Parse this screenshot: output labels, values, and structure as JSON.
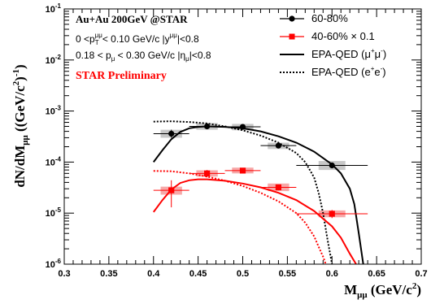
{
  "chart_data": {
    "type": "scatter",
    "xlabel_main": "M",
    "xlabel_sub": "μμ",
    "xlabel_unit_open": " (GeV/c",
    "xlabel_unit_sup": "2",
    "xlabel_unit_close": ")",
    "ylabel_main": "dN/dM",
    "ylabel_sub": "μμ",
    "ylabel_unit_open": " ((GeV/c",
    "ylabel_unit_sup": "2",
    "ylabel_unit_sup2": ")",
    "ylabel_unit_exp": "-1",
    "ylabel_unit_close": ")",
    "xlim": [
      0.3,
      0.7
    ],
    "ylim": [
      1e-06,
      0.1
    ],
    "yscale": "log",
    "x_ticks": [
      {
        "value": 0.3,
        "label": "0.3"
      },
      {
        "value": 0.35,
        "label": "0.35"
      },
      {
        "value": 0.4,
        "label": "0.4"
      },
      {
        "value": 0.45,
        "label": "0.45"
      },
      {
        "value": 0.5,
        "label": "0.5"
      },
      {
        "value": 0.55,
        "label": "0.55"
      },
      {
        "value": 0.6,
        "label": "0.6"
      },
      {
        "value": 0.65,
        "label": "0.65"
      },
      {
        "value": 0.7,
        "label": "0.7"
      }
    ],
    "y_ticks": [
      {
        "value": 1e-06,
        "base": "10",
        "exp": "-6"
      },
      {
        "value": 1e-05,
        "base": "10",
        "exp": "-5"
      },
      {
        "value": 0.0001,
        "base": "10",
        "exp": "-4"
      },
      {
        "value": 0.001,
        "base": "10",
        "exp": "-3"
      },
      {
        "value": 0.01,
        "base": "10",
        "exp": "-2"
      },
      {
        "value": 0.1,
        "base": "10",
        "exp": "-1"
      }
    ],
    "annotations": {
      "line1": "Au+Au 200GeV @STAR",
      "line2_a": "0 <p",
      "line2_sub": "T",
      "line2_sup": "μμ",
      "line2_b": "< 0.10 GeV/c  |y",
      "line2_sup2": "μμ",
      "line2_c": "|<0.8",
      "line3_a": "0.18 < p",
      "line3_sub": "μ",
      "line3_b": " < 0.30 GeV/c  |η",
      "line3_sub2": "μ",
      "line3_c": "|<0.8",
      "preliminary": "STAR Preliminary"
    },
    "legend": {
      "placement": "top-right",
      "entry1": "60-80%",
      "entry2": "40-60% × 0.1",
      "entry3_a": "EPA-QED (μ",
      "entry3_sup1": "+",
      "entry3_b": "μ",
      "entry3_sup2": "-",
      "entry3_c": ")",
      "entry4_a": "EPA-QED (e",
      "entry4_sup1": "+",
      "entry4_b": "e",
      "entry4_sup2": "-",
      "entry4_c": ")"
    },
    "series": [
      {
        "name": "60-80%",
        "color": "#000000",
        "marker": "circle",
        "points": [
          {
            "x": 0.42,
            "y": 0.00036,
            "xerr": 0.02,
            "ylo": 0.0003,
            "yhi": 0.00043,
            "sxerr": 0.012,
            "sylo": 0.0003,
            "syhi": 0.00043
          },
          {
            "x": 0.46,
            "y": 0.0005,
            "xerr": 0.02,
            "ylo": 0.00046,
            "yhi": 0.00054,
            "sxerr": 0.012,
            "sylo": 0.00043,
            "syhi": 0.00058
          },
          {
            "x": 0.5,
            "y": 0.00049,
            "xerr": 0.02,
            "ylo": 0.00045,
            "yhi": 0.00053,
            "sxerr": 0.012,
            "sylo": 0.00042,
            "syhi": 0.00056
          },
          {
            "x": 0.54,
            "y": 0.00021,
            "xerr": 0.02,
            "ylo": 0.00019,
            "yhi": 0.00023,
            "sxerr": 0.012,
            "sylo": 0.00018,
            "syhi": 0.00024
          },
          {
            "x": 0.6,
            "y": 8.6e-05,
            "xerr": 0.04,
            "ylo": 7.8e-05,
            "yhi": 9.5e-05,
            "sxerr": 0.015,
            "sylo": 7e-05,
            "syhi": 0.000105
          }
        ]
      },
      {
        "name": "40-60% × 0.1",
        "color": "#ff0000",
        "marker": "square",
        "points": [
          {
            "x": 0.42,
            "y": 2.8e-05,
            "xerr": 0.02,
            "ylo": 1.3e-05,
            "yhi": 4.4e-05,
            "sxerr": 0.012,
            "sylo": 2.3e-05,
            "syhi": 3.3e-05
          },
          {
            "x": 0.46,
            "y": 6e-05,
            "xerr": 0.02,
            "ylo": 5e-05,
            "yhi": 7e-05,
            "sxerr": 0.012,
            "sylo": 5.2e-05,
            "syhi": 6.9e-05
          },
          {
            "x": 0.5,
            "y": 6.8e-05,
            "xerr": 0.02,
            "ylo": 6e-05,
            "yhi": 7.6e-05,
            "sxerr": 0.012,
            "sylo": 6e-05,
            "syhi": 7.8e-05
          },
          {
            "x": 0.54,
            "y": 3.2e-05,
            "xerr": 0.02,
            "ylo": 2.8e-05,
            "yhi": 3.6e-05,
            "sxerr": 0.012,
            "sylo": 2.7e-05,
            "syhi": 3.8e-05
          },
          {
            "x": 0.6,
            "y": 9.7e-06,
            "xerr": 0.04,
            "ylo": 8e-06,
            "yhi": 1.15e-05,
            "sxerr": 0.015,
            "sylo": 8.3e-06,
            "syhi": 1.13e-05
          }
        ]
      }
    ],
    "curves": [
      {
        "name": "EPA-QED (μ+μ-) 60-80%",
        "color": "#000000",
        "dash": "solid",
        "points": [
          [
            0.4,
            0.0001
          ],
          [
            0.41,
            0.00017
          ],
          [
            0.42,
            0.00028
          ],
          [
            0.43,
            0.00039
          ],
          [
            0.44,
            0.00046
          ],
          [
            0.45,
            0.00049
          ],
          [
            0.46,
            0.0005
          ],
          [
            0.48,
            0.00049
          ],
          [
            0.5,
            0.00046
          ],
          [
            0.52,
            0.0004
          ],
          [
            0.54,
            0.00032
          ],
          [
            0.56,
            0.00024
          ],
          [
            0.58,
            0.00016
          ],
          [
            0.6,
            9e-05
          ],
          [
            0.61,
            6e-05
          ],
          [
            0.62,
            3e-05
          ],
          [
            0.625,
            1.5e-05
          ],
          [
            0.63,
            4e-06
          ],
          [
            0.635,
            1e-06
          ]
        ]
      },
      {
        "name": "EPA-QED (e+e-) 60-80%",
        "color": "#000000",
        "dash": "dotted",
        "points": [
          [
            0.4,
            0.00062
          ],
          [
            0.42,
            0.00063
          ],
          [
            0.44,
            0.00061
          ],
          [
            0.46,
            0.00057
          ],
          [
            0.48,
            0.0005
          ],
          [
            0.5,
            0.00042
          ],
          [
            0.52,
            0.00033
          ],
          [
            0.54,
            0.00024
          ],
          [
            0.56,
            0.00015
          ],
          [
            0.57,
            0.0001
          ],
          [
            0.58,
            5e-05
          ],
          [
            0.585,
            2.5e-05
          ],
          [
            0.59,
            1e-05
          ],
          [
            0.595,
            3e-06
          ],
          [
            0.6,
            1e-06
          ]
        ]
      },
      {
        "name": "EPA-QED (μ+μ-) 40-60%",
        "color": "#ff0000",
        "dash": "solid",
        "points": [
          [
            0.4,
            1.05e-05
          ],
          [
            0.41,
            1.8e-05
          ],
          [
            0.42,
            2.9e-05
          ],
          [
            0.43,
            3.9e-05
          ],
          [
            0.44,
            4.4e-05
          ],
          [
            0.45,
            4.6e-05
          ],
          [
            0.46,
            4.6e-05
          ],
          [
            0.48,
            4.3e-05
          ],
          [
            0.5,
            3.8e-05
          ],
          [
            0.52,
            3.2e-05
          ],
          [
            0.54,
            2.5e-05
          ],
          [
            0.56,
            1.8e-05
          ],
          [
            0.58,
            1.1e-05
          ],
          [
            0.6,
            5.5e-06
          ],
          [
            0.61,
            3.3e-06
          ],
          [
            0.62,
            1.6e-06
          ],
          [
            0.627,
            1e-06
          ]
        ]
      },
      {
        "name": "EPA-QED (e+e-) 40-60%",
        "color": "#ff0000",
        "dash": "dotted",
        "points": [
          [
            0.4,
            6.7e-05
          ],
          [
            0.42,
            6.6e-05
          ],
          [
            0.44,
            6e-05
          ],
          [
            0.46,
            5.2e-05
          ],
          [
            0.48,
            4.3e-05
          ],
          [
            0.5,
            3.4e-05
          ],
          [
            0.52,
            2.5e-05
          ],
          [
            0.54,
            1.7e-05
          ],
          [
            0.56,
            1e-05
          ],
          [
            0.57,
            6.5e-06
          ],
          [
            0.58,
            3.5e-06
          ],
          [
            0.585,
            2.2e-06
          ],
          [
            0.59,
            1.4e-06
          ],
          [
            0.593,
            1e-06
          ]
        ]
      }
    ]
  }
}
